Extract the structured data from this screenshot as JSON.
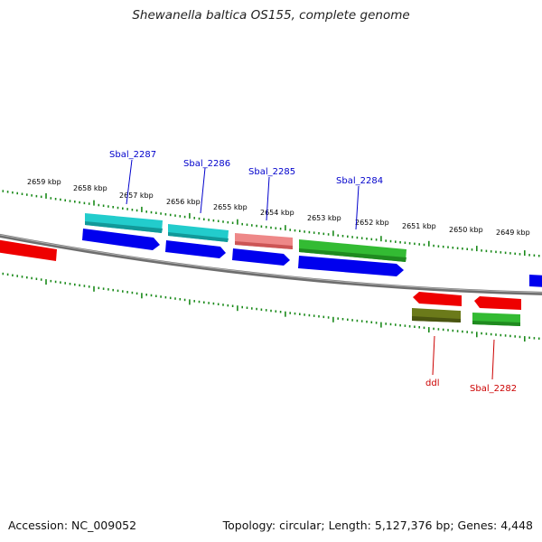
{
  "title": "Shewanella baltica OS155, complete genome",
  "footer": {
    "accession": "Accession: NC_009052",
    "summary": "Topology: circular; Length: 5,127,376 bp; Genes: 4,448"
  },
  "colors": {
    "backbone": "#8a8a8a",
    "tick": "#1a8a1a",
    "cds_forward": "#0000ee",
    "cds_reverse": "#ee0000",
    "label_upper": "#0000cc",
    "label_lower": "#cc0000",
    "cog_cyan": "#22cccc",
    "cog_pink": "#ee8888",
    "cog_green": "#33bb33",
    "cog_olive": "#6b7a1a",
    "cog_red": "#ee0000"
  },
  "kbp_labels": [
    "2659 kbp",
    "2658 kbp",
    "2657 kbp",
    "2656 kbp",
    "2655 kbp",
    "2654 kbp",
    "2653 kbp",
    "2652 kbp",
    "2651 kbp",
    "2650 kbp",
    "2649 kbp"
  ],
  "gene_labels_upper": [
    "Sbal_2287",
    "Sbal_2286",
    "Sbal_2285",
    "Sbal_2284"
  ],
  "gene_labels_lower": [
    "ddl",
    "Sbal_2282"
  ]
}
